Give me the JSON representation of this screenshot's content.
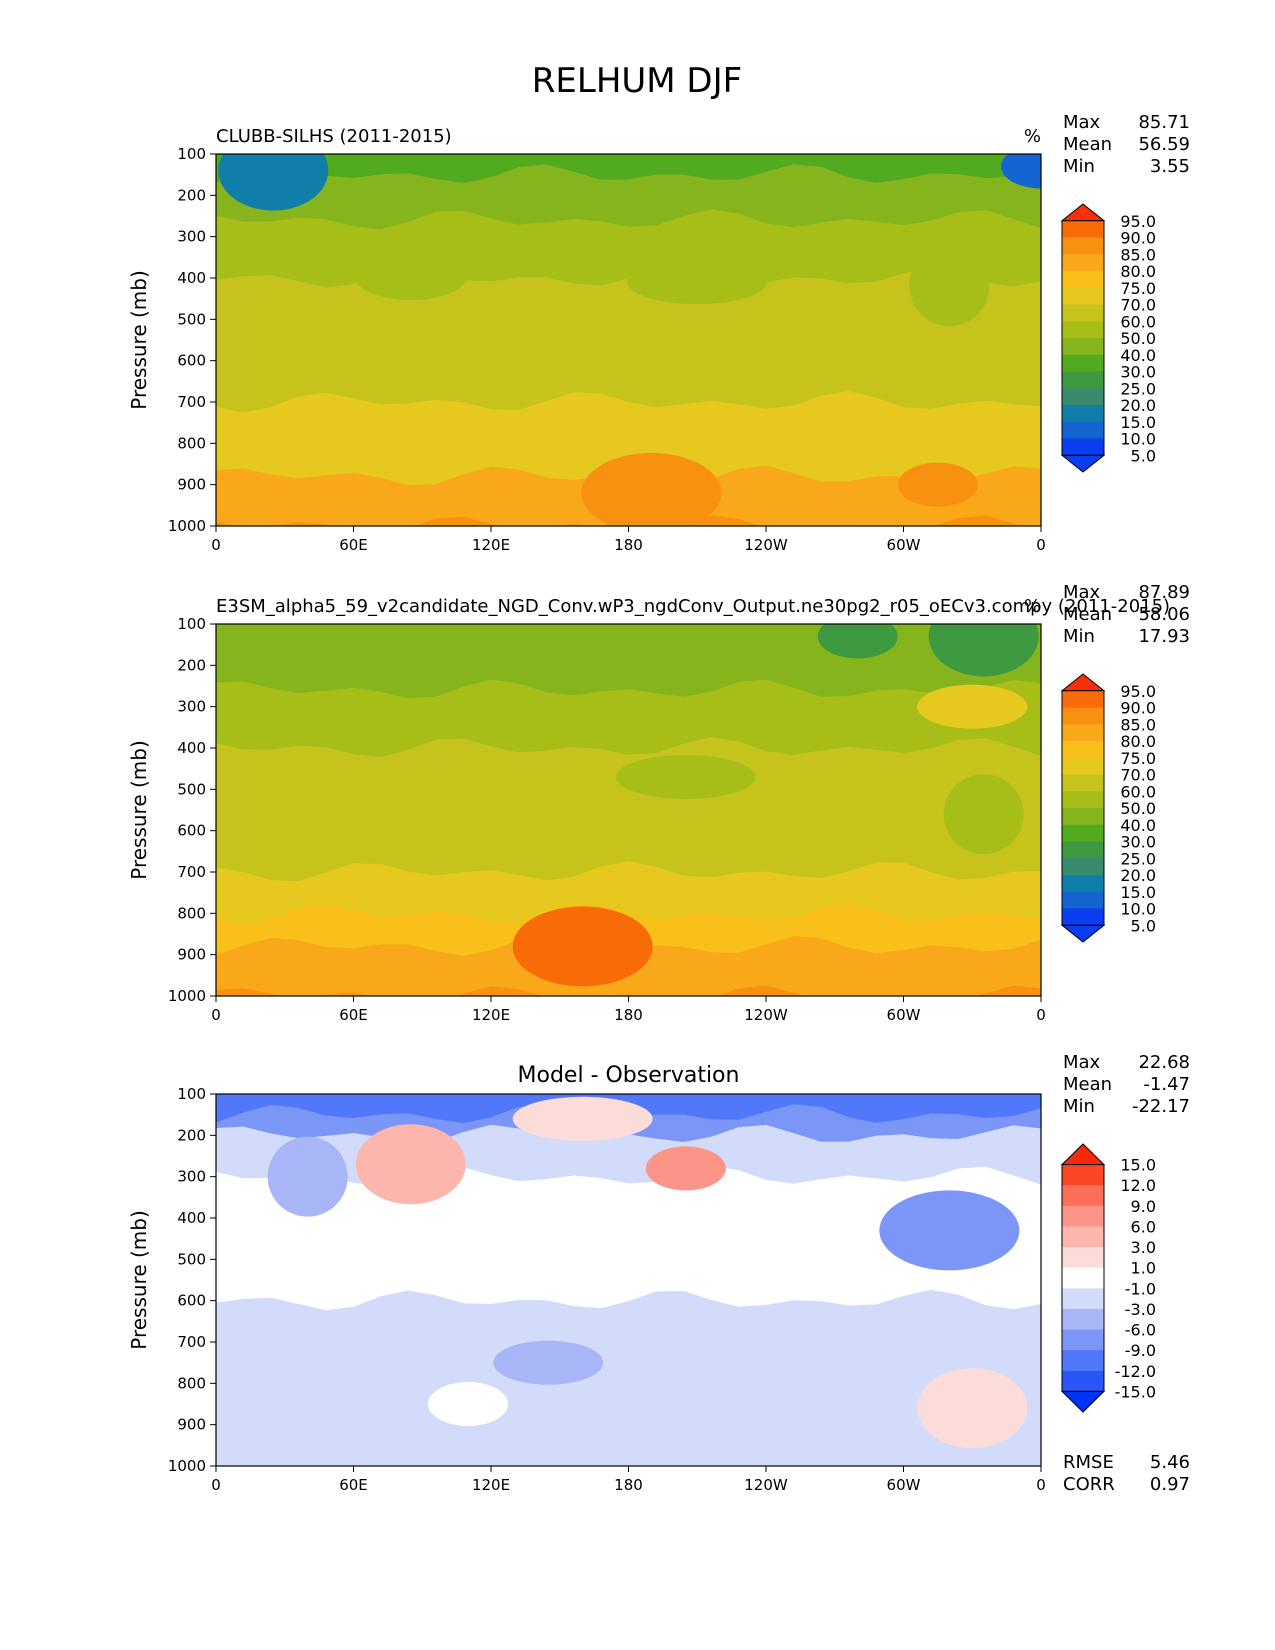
{
  "figure_title": "RELHUM DJF",
  "colors": {
    "field": [
      "#0a3cf0",
      "#1464d2",
      "#0f7ea8",
      "#3a8a6e",
      "#3e9a40",
      "#52aa1e",
      "#86b41c",
      "#a8be18",
      "#c6c41c",
      "#e6c81e",
      "#f8c018",
      "#f8a818",
      "#f89010",
      "#f86c08",
      "#f83008"
    ],
    "diff": [
      "#0032f8",
      "#2a56f8",
      "#5078f8",
      "#7c96f8",
      "#a8b6f8",
      "#d2dcfa",
      "#ffffff",
      "#fcdcd8",
      "#fcb6ae",
      "#fc9488",
      "#fc6e5a",
      "#fc4628",
      "#f82808"
    ]
  },
  "chart_data": [
    {
      "type": "contour",
      "title": "CLUBB-SILHS (2011-2015)",
      "units": "%",
      "xlabel": "",
      "ylabel": "Pressure (mb)",
      "xticks": [
        "0",
        "60E",
        "120E",
        "180",
        "120W",
        "60W",
        "0"
      ],
      "yticks": [
        "100",
        "200",
        "300",
        "400",
        "500",
        "600",
        "700",
        "800",
        "900",
        "1000"
      ],
      "ylim": [
        100,
        1000
      ],
      "stats": [
        {
          "label": "Max",
          "value": "85.71"
        },
        {
          "label": "Mean",
          "value": "56.59"
        },
        {
          "label": "Min",
          "value": "3.55"
        }
      ],
      "colorbar_ticks": [
        "95.0",
        "90.0",
        "85.0",
        "80.0",
        "75.0",
        "70.0",
        "60.0",
        "50.0",
        "40.0",
        "30.0",
        "25.0",
        "20.0",
        "15.0",
        "10.0",
        "5.0"
      ],
      "bands": [
        {
          "p": 100,
          "value": 28
        },
        {
          "p": 150,
          "value": 32
        },
        {
          "p": 200,
          "value": 38
        },
        {
          "p": 260,
          "value": 48
        },
        {
          "p": 400,
          "value": 55
        },
        {
          "p": 600,
          "value": 58
        },
        {
          "p": 700,
          "value": 62
        },
        {
          "p": 800,
          "value": 68
        },
        {
          "p": 880,
          "value": 76
        },
        {
          "p": 1000,
          "value": 80
        }
      ],
      "blobs": [
        {
          "lon": 360,
          "p": 130,
          "value": 8
        },
        {
          "lon": 25,
          "p": 140,
          "value": 14
        },
        {
          "lon": 210,
          "p": 410,
          "value": 45
        },
        {
          "lon": 320,
          "p": 420,
          "value": 45
        },
        {
          "lon": 85,
          "p": 400,
          "value": 45
        },
        {
          "lon": 190,
          "p": 920,
          "value": 83
        },
        {
          "lon": 315,
          "p": 900,
          "value": 83
        }
      ]
    },
    {
      "type": "contour",
      "title": "E3SM_alpha5_59_v2candidate_NGD_Conv.wP3_ngdConv_Output.ne30pg2_r05_oECv3.compy (2011-2015)",
      "units": "%",
      "xlabel": "",
      "ylabel": "Pressure (mb)",
      "xticks": [
        "0",
        "60E",
        "120E",
        "180",
        "120W",
        "60W",
        "0"
      ],
      "yticks": [
        "100",
        "200",
        "300",
        "400",
        "500",
        "600",
        "700",
        "800",
        "900",
        "1000"
      ],
      "ylim": [
        100,
        1000
      ],
      "stats": [
        {
          "label": "Max",
          "value": "87.89"
        },
        {
          "label": "Mean",
          "value": "58.06"
        },
        {
          "label": "Min",
          "value": "17.93"
        }
      ],
      "colorbar_ticks": [
        "95.0",
        "90.0",
        "85.0",
        "80.0",
        "75.0",
        "70.0",
        "60.0",
        "50.0",
        "40.0",
        "30.0",
        "25.0",
        "20.0",
        "15.0",
        "10.0",
        "5.0"
      ],
      "bands": [
        {
          "p": 100,
          "value": 33
        },
        {
          "p": 200,
          "value": 38
        },
        {
          "p": 260,
          "value": 48
        },
        {
          "p": 400,
          "value": 55
        },
        {
          "p": 600,
          "value": 58
        },
        {
          "p": 700,
          "value": 63
        },
        {
          "p": 800,
          "value": 70
        },
        {
          "p": 880,
          "value": 77
        },
        {
          "p": 1000,
          "value": 81
        }
      ],
      "blobs": [
        {
          "lon": 280,
          "p": 130,
          "value": 22
        },
        {
          "lon": 335,
          "p": 130,
          "value": 22
        },
        {
          "lon": 205,
          "p": 470,
          "value": 45
        },
        {
          "lon": 335,
          "p": 560,
          "value": 45
        },
        {
          "lon": 330,
          "p": 300,
          "value": 65
        },
        {
          "lon": 160,
          "p": 880,
          "value": 86
        }
      ]
    },
    {
      "type": "contour",
      "title": "Model - Observation",
      "units": "",
      "xlabel": "",
      "ylabel": "Pressure (mb)",
      "xticks": [
        "0",
        "60E",
        "120E",
        "180",
        "120W",
        "60W",
        "0"
      ],
      "yticks": [
        "100",
        "200",
        "300",
        "400",
        "500",
        "600",
        "700",
        "800",
        "900",
        "1000"
      ],
      "ylim": [
        100,
        1000
      ],
      "stats": [
        {
          "label": "Max",
          "value": "22.68"
        },
        {
          "label": "Mean",
          "value": "-1.47"
        },
        {
          "label": "Min",
          "value": "-22.17"
        }
      ],
      "colorbar_ticks": [
        "15.0",
        "12.0",
        "9.0",
        "6.0",
        "3.0",
        "1.0",
        "-1.0",
        "-3.0",
        "-6.0",
        "-9.0",
        "-12.0",
        "-15.0"
      ],
      "bands": [
        {
          "p": 100,
          "value": -11
        },
        {
          "p": 150,
          "value": -7
        },
        {
          "p": 200,
          "value": -2
        },
        {
          "p": 300,
          "value": 0
        },
        {
          "p": 600,
          "value": -1.5
        },
        {
          "p": 800,
          "value": -2
        },
        {
          "p": 1000,
          "value": -2
        }
      ],
      "blobs": [
        {
          "lon": 205,
          "p": 280,
          "value": 8
        },
        {
          "lon": 85,
          "p": 270,
          "value": 5
        },
        {
          "lon": 160,
          "p": 160,
          "value": 2
        },
        {
          "lon": 40,
          "p": 300,
          "value": -4
        },
        {
          "lon": 145,
          "p": 750,
          "value": -4
        },
        {
          "lon": 320,
          "p": 430,
          "value": -8
        },
        {
          "lon": 110,
          "p": 850,
          "value": 0
        },
        {
          "lon": 330,
          "p": 860,
          "value": 2
        }
      ],
      "footer_stats": [
        {
          "label": "RMSE",
          "value": "5.46"
        },
        {
          "label": "CORR",
          "value": "0.97"
        }
      ]
    }
  ]
}
